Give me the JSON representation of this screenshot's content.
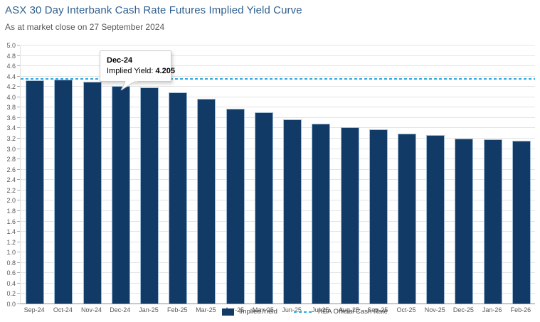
{
  "chart_data": {
    "type": "bar",
    "title": "ASX 30 Day Interbank Cash Rate Futures Implied Yield Curve",
    "subtitle": "As at market close on 27 September 2024",
    "categories": [
      "Sep-24",
      "Oct-24",
      "Nov-24",
      "Dec-24",
      "Jan-25",
      "Feb-25",
      "Mar-25",
      "Apr-25",
      "May-25",
      "Jun-25",
      "Jul-25",
      "Aug-25",
      "Sep-25",
      "Oct-25",
      "Nov-25",
      "Dec-25",
      "Jan-26",
      "Feb-26"
    ],
    "series": [
      {
        "name": "Implied Yield",
        "values": [
          4.32,
          4.33,
          4.28,
          4.205,
          4.17,
          4.08,
          3.96,
          3.77,
          3.69,
          3.56,
          3.48,
          3.4,
          3.37,
          3.28,
          3.25,
          3.19,
          3.17,
          3.15
        ]
      }
    ],
    "reference_line": {
      "name": "RBA Official Cash Rate",
      "value": 4.35,
      "style": "dashed"
    },
    "xlabel": "",
    "ylabel": "",
    "ylim": [
      0,
      5
    ],
    "y_tick_step": 0.2,
    "y_tick_labels": [
      "0.0",
      "0.2",
      "0.4",
      "0.6",
      "0.8",
      "1.0",
      "1.2",
      "1.4",
      "1.6",
      "1.8",
      "2.0",
      "2.2",
      "2.4",
      "2.6",
      "2.8",
      "3.0",
      "3.2",
      "3.4",
      "3.6",
      "3.8",
      "4.0",
      "4.2",
      "4.4",
      "4.6",
      "4.8",
      "5.0"
    ],
    "grid": true,
    "legend_position": "bottom",
    "legend": [
      "Implied Yield",
      "RBA Official Cash Rate"
    ],
    "tooltip": {
      "category": "Dec-24",
      "label": "Implied Yield:",
      "value": "4.205"
    },
    "colors": {
      "bar": "#113A66",
      "bar_border": "#9FBCD6",
      "reference_line": "#29A9E1",
      "title": "#2F5F8F",
      "subtitle": "#595959",
      "axis_text": "#595959",
      "gridline": "#E4E4E4"
    }
  }
}
